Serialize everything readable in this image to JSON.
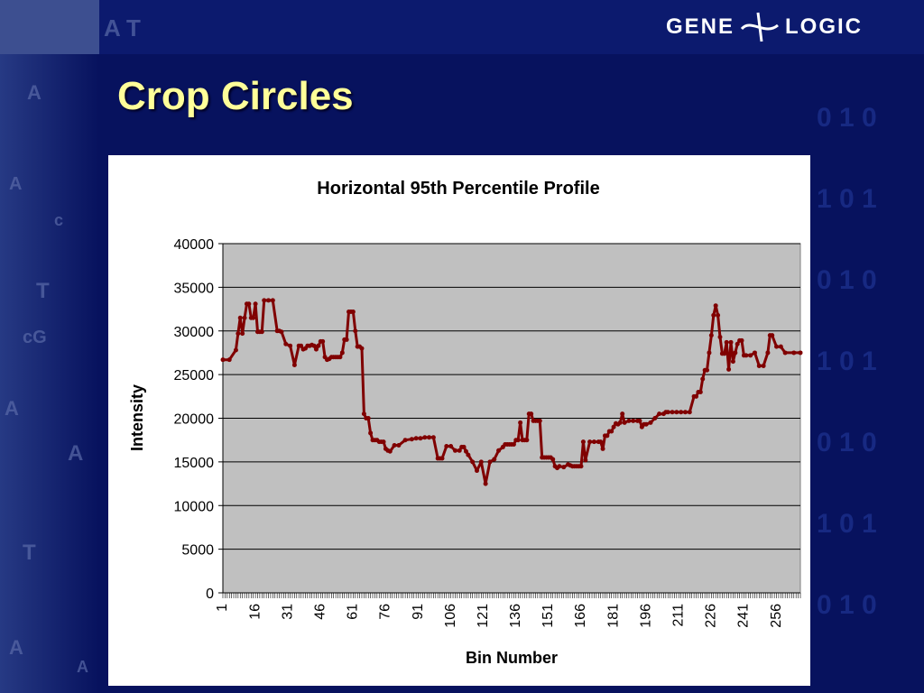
{
  "slide": {
    "title": "Crop Circles",
    "logo": {
      "left": "GENE",
      "right": "LOGIC"
    }
  },
  "colors": {
    "background": "#07125e",
    "title": "#ffff99",
    "plot_area": "#c0c0c0",
    "series": "#800000"
  },
  "chart_data": {
    "type": "line",
    "title": "Horizontal 95th Percentile Profile",
    "xlabel": "Bin Number",
    "ylabel": "Intensity",
    "ylim": [
      0,
      40000
    ],
    "yticks": [
      0,
      5000,
      10000,
      15000,
      20000,
      25000,
      30000,
      35000,
      40000
    ],
    "xlim": [
      1,
      267
    ],
    "xticks": [
      1,
      16,
      31,
      46,
      61,
      76,
      91,
      106,
      121,
      136,
      151,
      166,
      181,
      196,
      211,
      226,
      241,
      256
    ],
    "grid": "horizontal",
    "legend": "none",
    "markers": true,
    "series": [
      {
        "x": [
          1,
          4,
          7,
          8,
          9,
          10,
          11,
          12,
          13,
          14,
          15,
          16,
          17,
          18,
          19,
          20,
          22,
          24,
          26,
          27,
          28,
          30,
          32,
          34,
          36,
          37,
          38,
          39,
          40,
          41,
          42,
          43,
          44,
          45,
          46,
          47,
          48,
          49,
          50,
          51,
          52,
          53,
          54,
          55,
          56,
          57,
          58,
          59,
          60,
          61,
          62,
          63,
          64,
          65,
          66,
          67,
          68,
          69,
          70,
          71,
          72,
          73,
          74,
          75,
          76,
          77,
          78,
          80,
          82,
          85,
          88,
          90,
          92,
          94,
          96,
          98,
          100,
          101,
          102,
          104,
          106,
          108,
          110,
          111,
          112,
          113,
          114,
          116,
          118,
          120,
          122,
          124,
          126,
          128,
          130,
          131,
          132,
          133,
          134,
          135,
          136,
          137,
          138,
          139,
          140,
          141,
          142,
          143,
          144,
          145,
          146,
          147,
          148,
          149,
          150,
          151,
          152,
          153,
          154,
          155,
          156,
          158,
          160,
          161,
          162,
          163,
          164,
          165,
          166,
          167,
          168,
          170,
          172,
          174,
          175,
          176,
          177,
          178,
          179,
          180,
          181,
          182,
          183,
          184,
          185,
          186,
          188,
          190,
          192,
          193,
          194,
          195,
          196,
          198,
          200,
          202,
          204,
          205,
          206,
          208,
          210,
          212,
          214,
          216,
          218,
          219,
          220,
          221,
          222,
          223,
          224,
          225,
          226,
          227,
          228,
          229,
          230,
          231,
          232,
          233,
          234,
          235,
          236,
          237,
          238,
          239,
          240,
          241,
          242,
          244,
          246,
          248,
          250,
          252,
          253,
          254,
          256,
          258,
          260,
          264,
          267
        ],
        "values": [
          26700,
          26700,
          27800,
          29700,
          31500,
          29700,
          31500,
          33100,
          33100,
          31500,
          31500,
          33100,
          29900,
          29900,
          29900,
          33500,
          33500,
          33500,
          30000,
          30000,
          29900,
          28500,
          28300,
          26100,
          28300,
          28300,
          27900,
          28000,
          28300,
          28300,
          28400,
          28300,
          27900,
          28300,
          28800,
          28800,
          27000,
          26700,
          26800,
          27000,
          27000,
          27000,
          27000,
          27000,
          27500,
          29000,
          29000,
          32200,
          32200,
          32200,
          30000,
          28200,
          28200,
          28000,
          20500,
          20000,
          20000,
          18300,
          17500,
          17500,
          17500,
          17300,
          17300,
          17300,
          16500,
          16300,
          16200,
          16900,
          16900,
          17500,
          17600,
          17700,
          17700,
          17800,
          17800,
          17800,
          15400,
          15400,
          15400,
          16800,
          16800,
          16300,
          16300,
          16700,
          16700,
          16200,
          15800,
          15000,
          14000,
          15000,
          12500,
          15000,
          15300,
          16300,
          16700,
          17000,
          17000,
          17000,
          17000,
          17000,
          17500,
          17500,
          19500,
          17500,
          17500,
          17500,
          20500,
          20500,
          19700,
          19700,
          19700,
          19700,
          15500,
          15500,
          15500,
          15500,
          15500,
          15300,
          14500,
          14300,
          14500,
          14400,
          14700,
          14600,
          14500,
          14500,
          14500,
          14500,
          14500,
          17300,
          15200,
          17300,
          17300,
          17300,
          17300,
          16500,
          18000,
          18000,
          18500,
          18500,
          19000,
          19400,
          19300,
          19500,
          20500,
          19500,
          19700,
          19700,
          19700,
          19700,
          19000,
          19300,
          19300,
          19500,
          20000,
          20500,
          20500,
          20700,
          20700,
          20700,
          20700,
          20700,
          20700,
          20700,
          22500,
          22500,
          23000,
          23000,
          24500,
          25500,
          25500,
          27500,
          29500,
          31800,
          32900,
          31800,
          29300,
          27400,
          27400,
          28700,
          25600,
          28700,
          26500,
          27500,
          28500,
          28900,
          28900,
          27200,
          27200,
          27200,
          27500,
          26000,
          26000,
          27500,
          29500,
          29500,
          28200,
          28200,
          27500,
          27500,
          27500
        ]
      }
    ]
  }
}
